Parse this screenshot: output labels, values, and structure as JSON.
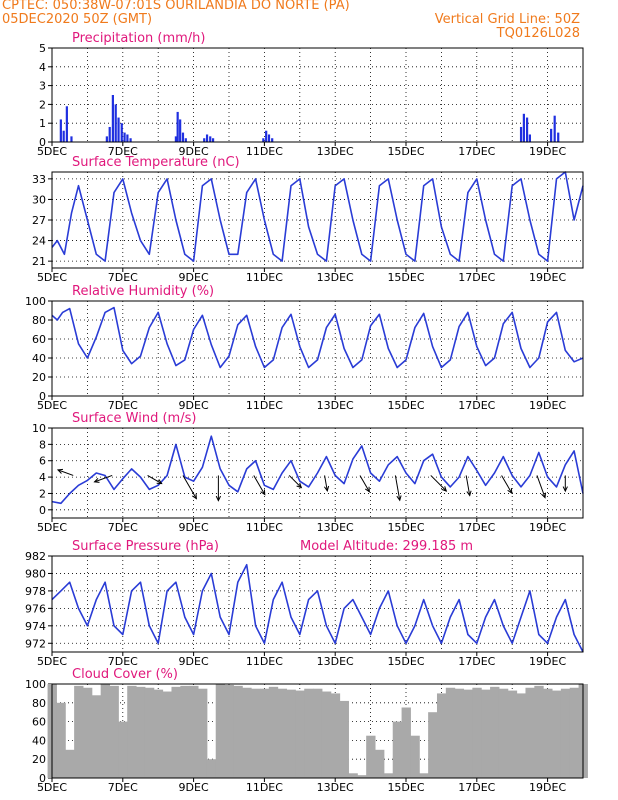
{
  "header": {
    "source_line": "CPTEC:   050:38W-07:01S   OURILANDIA DO NORTE (PA)",
    "run_line": "05DEC2020 50Z (GMT)",
    "grid_note": "Vertical Grid Line: 50Z",
    "product_code": "TQ0126L028"
  },
  "colors": {
    "header_text": "#f07a1c",
    "title_text": "#e0187c",
    "series_line": "#2a3cd6",
    "precip_bar": "#1f2fe0",
    "cloud_fill": "#a9a9a9"
  },
  "x_axis": {
    "tick_labels": [
      "5DEC",
      "7DEC",
      "9DEC",
      "11DEC",
      "13DEC",
      "15DEC",
      "17DEC",
      "19DEC"
    ],
    "range_days": [
      0,
      15
    ]
  },
  "chart_data": [
    {
      "id": "precip",
      "type": "bar",
      "title": "Precipitation (mm/h)",
      "ylim": [
        0,
        5
      ],
      "yticks": [
        "0",
        "1",
        "2",
        "3",
        "4",
        "5"
      ],
      "x": [
        0.25,
        0.33,
        0.42,
        0.55,
        1.55,
        1.63,
        1.72,
        1.8,
        1.88,
        1.97,
        2.05,
        2.13,
        2.22,
        3.5,
        3.55,
        3.62,
        3.7,
        3.78,
        4.3,
        4.38,
        4.47,
        4.55,
        5.97,
        6.05,
        6.13,
        6.22,
        13.25,
        13.33,
        13.42,
        13.5,
        14.1,
        14.2,
        14.3
      ],
      "values": [
        1.2,
        0.6,
        1.9,
        0.3,
        0.3,
        0.8,
        2.5,
        2.0,
        1.3,
        1.0,
        0.5,
        0.4,
        0.2,
        0.3,
        1.6,
        1.2,
        0.5,
        0.2,
        0.2,
        0.4,
        0.3,
        0.2,
        0.2,
        0.6,
        0.4,
        0.2,
        0.8,
        1.5,
        1.3,
        0.4,
        0.7,
        1.4,
        0.5
      ]
    },
    {
      "id": "temp",
      "type": "line",
      "title": "Surface Temperature (nC)",
      "ylim": [
        20,
        34
      ],
      "yticks": [
        "21",
        "24",
        "27",
        "30",
        "33"
      ],
      "x": [
        0,
        0.15,
        0.35,
        0.55,
        0.75,
        1.0,
        1.25,
        1.5,
        1.75,
        2.0,
        2.25,
        2.5,
        2.75,
        3.0,
        3.25,
        3.5,
        3.75,
        4.0,
        4.25,
        4.5,
        4.75,
        5.0,
        5.25,
        5.5,
        5.75,
        6.0,
        6.25,
        6.5,
        6.75,
        7.0,
        7.25,
        7.5,
        7.75,
        8.0,
        8.25,
        8.5,
        8.75,
        9.0,
        9.25,
        9.5,
        9.75,
        10.0,
        10.25,
        10.5,
        10.75,
        11.0,
        11.25,
        11.5,
        11.75,
        12.0,
        12.25,
        12.5,
        12.75,
        13.0,
        13.25,
        13.5,
        13.75,
        14.0,
        14.25,
        14.5,
        14.75,
        15.0
      ],
      "values": [
        23,
        24,
        22,
        28,
        32,
        27,
        22,
        21,
        31,
        33,
        28,
        24,
        22,
        31,
        33,
        27,
        22,
        21,
        32,
        33,
        27,
        22,
        22,
        31,
        33,
        27,
        22,
        21,
        32,
        33,
        26,
        22,
        21,
        32,
        33,
        27,
        22,
        21,
        32,
        33,
        27,
        22,
        21,
        32,
        33,
        26,
        22,
        21,
        31,
        33,
        27,
        22,
        21,
        32,
        33,
        27,
        22,
        21,
        33,
        34,
        27,
        32
      ]
    },
    {
      "id": "rh",
      "type": "line",
      "title": "Relative Humidity (%)",
      "ylim": [
        0,
        100
      ],
      "yticks": [
        "0",
        "20",
        "40",
        "60",
        "80",
        "100"
      ],
      "x": [
        0,
        0.15,
        0.3,
        0.5,
        0.75,
        1.0,
        1.25,
        1.5,
        1.75,
        2.0,
        2.25,
        2.5,
        2.75,
        3.0,
        3.25,
        3.5,
        3.75,
        4.0,
        4.25,
        4.5,
        4.75,
        5.0,
        5.25,
        5.5,
        5.75,
        6.0,
        6.25,
        6.5,
        6.75,
        7.0,
        7.25,
        7.5,
        7.75,
        8.0,
        8.25,
        8.5,
        8.75,
        9.0,
        9.25,
        9.5,
        9.75,
        10.0,
        10.25,
        10.5,
        10.75,
        11.0,
        11.25,
        11.5,
        11.75,
        12.0,
        12.25,
        12.5,
        12.75,
        13.0,
        13.25,
        13.5,
        13.75,
        14.0,
        14.25,
        14.5,
        14.75,
        15.0
      ],
      "values": [
        85,
        80,
        88,
        92,
        55,
        40,
        62,
        88,
        93,
        48,
        34,
        42,
        72,
        88,
        55,
        32,
        38,
        70,
        85,
        54,
        30,
        42,
        75,
        85,
        52,
        30,
        38,
        72,
        86,
        52,
        30,
        38,
        72,
        86,
        50,
        30,
        38,
        74,
        86,
        50,
        30,
        38,
        72,
        87,
        52,
        30,
        38,
        73,
        88,
        52,
        32,
        40,
        76,
        88,
        50,
        30,
        40,
        78,
        88,
        48,
        36,
        40
      ]
    },
    {
      "id": "wind",
      "type": "line",
      "title": "Surface Wind (m/s)",
      "ylim": [
        -1,
        10
      ],
      "yticks": [
        "0",
        "2",
        "4",
        "6",
        "8",
        "10"
      ],
      "x": [
        0,
        0.25,
        0.5,
        0.75,
        1.0,
        1.25,
        1.5,
        1.75,
        2.0,
        2.25,
        2.5,
        2.75,
        3.0,
        3.25,
        3.5,
        3.75,
        4.0,
        4.25,
        4.5,
        4.75,
        5.0,
        5.25,
        5.5,
        5.75,
        6.0,
        6.25,
        6.5,
        6.75,
        7.0,
        7.25,
        7.5,
        7.75,
        8.0,
        8.25,
        8.5,
        8.75,
        9.0,
        9.25,
        9.5,
        9.75,
        10.0,
        10.25,
        10.5,
        10.75,
        11.0,
        11.25,
        11.5,
        11.75,
        12.0,
        12.25,
        12.5,
        12.75,
        13.0,
        13.25,
        13.5,
        13.75,
        14.0,
        14.25,
        14.5,
        14.75,
        15.0
      ],
      "values": [
        1.0,
        0.8,
        2.0,
        3.0,
        3.6,
        4.5,
        4.2,
        2.5,
        3.8,
        5.0,
        4.0,
        2.5,
        3.0,
        4.2,
        8.0,
        4.0,
        3.5,
        5.2,
        9.0,
        5.0,
        3.0,
        2.2,
        5.0,
        6.0,
        3.0,
        2.5,
        4.5,
        6.0,
        3.5,
        2.8,
        4.5,
        6.5,
        4.2,
        3.2,
        6.2,
        7.8,
        4.5,
        3.5,
        5.5,
        6.5,
        4.5,
        3.2,
        6.0,
        6.8,
        4.0,
        2.8,
        4.0,
        6.5,
        4.8,
        3.0,
        4.5,
        6.5,
        4.2,
        2.8,
        4.2,
        7.0,
        4.0,
        2.8,
        5.5,
        7.2,
        2.0
      ],
      "arrow_x": [
        0.6,
        1.7,
        2.7,
        3.7,
        4.7,
        5.7,
        6.7,
        7.7,
        8.7,
        9.7,
        10.7,
        11.7,
        12.7,
        13.7,
        14.5
      ],
      "arrow_dir_deg": [
        200,
        160,
        30,
        60,
        90,
        60,
        45,
        80,
        60,
        80,
        45,
        80,
        60,
        70,
        90
      ],
      "arrow_speed": [
        3.2,
        4.0,
        3.2,
        6.5,
        6.0,
        5.0,
        3.5,
        3.0,
        4.0,
        6.0,
        5.0,
        4.5,
        4.5,
        5.5,
        3.0
      ]
    },
    {
      "id": "pressure",
      "type": "line",
      "title": "Surface Pressure (hPa)",
      "annotation": "Model Altitude: 299.185 m",
      "ylim": [
        971,
        982
      ],
      "yticks": [
        "972",
        "974",
        "976",
        "978",
        "980",
        "982"
      ],
      "x": [
        0,
        0.25,
        0.5,
        0.75,
        1.0,
        1.25,
        1.5,
        1.75,
        2.0,
        2.25,
        2.5,
        2.75,
        3.0,
        3.25,
        3.5,
        3.75,
        4.0,
        4.25,
        4.5,
        4.75,
        5.0,
        5.25,
        5.5,
        5.75,
        6.0,
        6.25,
        6.5,
        6.75,
        7.0,
        7.25,
        7.5,
        7.75,
        8.0,
        8.25,
        8.5,
        8.75,
        9.0,
        9.25,
        9.5,
        9.75,
        10.0,
        10.25,
        10.5,
        10.75,
        11.0,
        11.25,
        11.5,
        11.75,
        12.0,
        12.25,
        12.5,
        12.75,
        13.0,
        13.25,
        13.5,
        13.75,
        14.0,
        14.25,
        14.5,
        14.75,
        15.0
      ],
      "values": [
        977,
        978,
        979,
        976,
        974,
        977,
        979,
        974,
        973,
        978,
        979,
        974,
        972,
        978,
        979,
        975,
        973,
        978,
        980,
        975,
        973,
        979,
        981,
        974,
        972,
        977,
        979,
        975,
        973,
        977,
        978,
        974,
        972,
        976,
        977,
        975,
        973,
        976,
        978,
        974,
        972,
        974,
        977,
        974,
        972,
        975,
        977,
        973,
        972,
        975,
        977,
        974,
        972,
        975,
        978,
        973,
        972,
        975,
        977,
        973,
        971
      ]
    },
    {
      "id": "cloud",
      "type": "area",
      "title": "Cloud Cover (%)",
      "ylim": [
        0,
        100
      ],
      "yticks": [
        "0",
        "20",
        "40",
        "60",
        "80",
        "100"
      ],
      "x": [
        0,
        0.25,
        0.5,
        0.75,
        1.0,
        1.25,
        1.5,
        1.75,
        2.0,
        2.25,
        2.5,
        2.75,
        3.0,
        3.25,
        3.5,
        3.75,
        4.0,
        4.25,
        4.5,
        4.75,
        5.0,
        5.25,
        5.5,
        5.75,
        6.0,
        6.25,
        6.5,
        6.75,
        7.0,
        7.25,
        7.5,
        7.75,
        8.0,
        8.25,
        8.5,
        8.75,
        9.0,
        9.25,
        9.5,
        9.75,
        10.0,
        10.25,
        10.5,
        10.75,
        11.0,
        11.25,
        11.5,
        11.75,
        12.0,
        12.25,
        12.5,
        12.75,
        13.0,
        13.25,
        13.5,
        13.75,
        14.0,
        14.25,
        14.5,
        14.75,
        15.0
      ],
      "values": [
        100,
        80,
        30,
        98,
        96,
        88,
        100,
        98,
        60,
        98,
        97,
        96,
        94,
        92,
        97,
        98,
        98,
        95,
        20,
        100,
        99,
        98,
        96,
        95,
        95,
        97,
        95,
        94,
        93,
        95,
        95,
        92,
        90,
        82,
        5,
        3,
        45,
        30,
        5,
        60,
        75,
        45,
        5,
        70,
        90,
        96,
        95,
        94,
        96,
        94,
        97,
        95,
        93,
        90,
        96,
        98,
        95,
        93,
        95,
        96,
        100
      ]
    }
  ]
}
